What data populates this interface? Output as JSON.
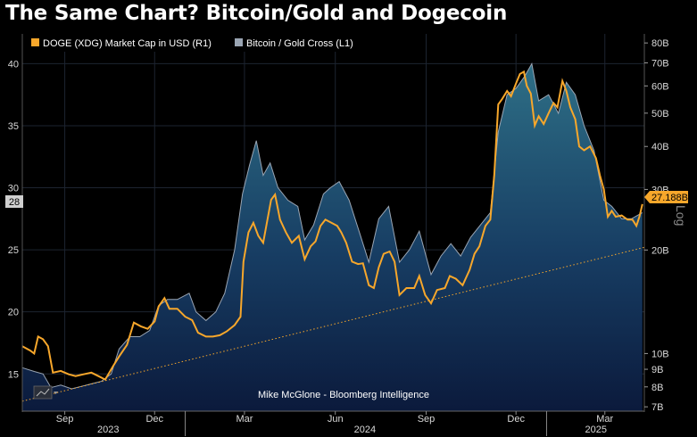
{
  "title": "The Same Chart? Bitcoin/Gold and Dogecoin",
  "credit": "Mike McGlone - Bloomberg Intelligence",
  "colors": {
    "background": "#000000",
    "doge_line": "#f7a72b",
    "btc_gold_line": "#9aa5b3",
    "area_top": "#2e6f86",
    "area_bottom": "#0b1a3c",
    "trendline": "#f7a72b"
  },
  "chart_data": {
    "type": "line",
    "title": "The Same Chart? Bitcoin/Gold and Dogecoin",
    "x_axis": {
      "month_labels": [
        "Sep",
        "Dec",
        "Mar",
        "Jun",
        "Sep",
        "Dec",
        "Mar"
      ],
      "month_dates": [
        "2023-09-01",
        "2023-12-01",
        "2024-03-01",
        "2024-06-01",
        "2024-09-01",
        "2024-12-01",
        "2025-03-01"
      ],
      "year_labels": [
        "2023",
        "2024",
        "2025"
      ],
      "year_dates": [
        "2023-10-15",
        "2024-07-01",
        "2025-02-20"
      ],
      "range": [
        "2023-07-20",
        "2025-04-10"
      ]
    },
    "left_axis": {
      "label": "Bitcoin / Gold Cross (L1)",
      "ticks": [
        15,
        20,
        25,
        30,
        35,
        40
      ],
      "range": [
        12,
        42.4
      ],
      "last_value_tag": "28"
    },
    "right_axis": {
      "label": "Log",
      "scale": "log",
      "ticks": [
        "7B",
        "8B",
        "9B",
        "10B",
        "20B",
        "30B",
        "40B",
        "50B",
        "60B",
        "70B",
        "80B"
      ],
      "tick_values_billion": [
        7,
        8,
        9,
        10,
        20,
        30,
        40,
        50,
        60,
        70,
        80
      ],
      "range_billion": [
        6.8,
        85
      ],
      "last_value_tag": "27.188B"
    },
    "legend": {
      "placement": "top-left",
      "entries": [
        "DOGE (XDG) Market Cap in USD (R1)",
        "Bitcoin / Gold Cross (L1)"
      ]
    },
    "series": [
      {
        "name": "DOGE (XDG) Market Cap in USD (R1)",
        "axis": "right",
        "unit": "USD billions",
        "points": [
          [
            "2023-07-20",
            10.5
          ],
          [
            "2023-07-28",
            10.2
          ],
          [
            "2023-08-01",
            10.0
          ],
          [
            "2023-08-05",
            11.2
          ],
          [
            "2023-08-10",
            11.0
          ],
          [
            "2023-08-15",
            10.5
          ],
          [
            "2023-08-20",
            8.8
          ],
          [
            "2023-08-28",
            8.9
          ],
          [
            "2023-09-05",
            8.7
          ],
          [
            "2023-09-12",
            8.6
          ],
          [
            "2023-09-20",
            8.7
          ],
          [
            "2023-09-28",
            8.8
          ],
          [
            "2023-10-05",
            8.6
          ],
          [
            "2023-10-12",
            8.4
          ],
          [
            "2023-10-20",
            9.2
          ],
          [
            "2023-10-26",
            9.8
          ],
          [
            "2023-11-03",
            10.6
          ],
          [
            "2023-11-10",
            12.3
          ],
          [
            "2023-11-17",
            12.0
          ],
          [
            "2023-11-24",
            11.8
          ],
          [
            "2023-12-01",
            12.4
          ],
          [
            "2023-12-05",
            13.7
          ],
          [
            "2023-12-11",
            14.5
          ],
          [
            "2023-12-16",
            13.5
          ],
          [
            "2023-12-24",
            13.5
          ],
          [
            "2024-01-01",
            12.8
          ],
          [
            "2024-01-08",
            12.5
          ],
          [
            "2024-01-14",
            11.5
          ],
          [
            "2024-01-22",
            11.2
          ],
          [
            "2024-01-29",
            11.2
          ],
          [
            "2024-02-05",
            11.3
          ],
          [
            "2024-02-12",
            11.6
          ],
          [
            "2024-02-20",
            12.1
          ],
          [
            "2024-02-26",
            12.8
          ],
          [
            "2024-02-29",
            18.5
          ],
          [
            "2024-03-05",
            22.5
          ],
          [
            "2024-03-10",
            24.0
          ],
          [
            "2024-03-15",
            22.0
          ],
          [
            "2024-03-20",
            21.0
          ],
          [
            "2024-03-28",
            28.0
          ],
          [
            "2024-04-01",
            29.0
          ],
          [
            "2024-04-06",
            24.5
          ],
          [
            "2024-04-12",
            22.5
          ],
          [
            "2024-04-18",
            21.0
          ],
          [
            "2024-04-25",
            22.0
          ],
          [
            "2024-05-01",
            18.8
          ],
          [
            "2024-05-07",
            20.5
          ],
          [
            "2024-05-12",
            21.2
          ],
          [
            "2024-05-17",
            23.5
          ],
          [
            "2024-05-22",
            24.5
          ],
          [
            "2024-05-28",
            24.0
          ],
          [
            "2024-06-03",
            23.5
          ],
          [
            "2024-06-07",
            22.5
          ],
          [
            "2024-06-12",
            21.0
          ],
          [
            "2024-06-18",
            18.5
          ],
          [
            "2024-06-24",
            18.2
          ],
          [
            "2024-06-29",
            18.3
          ],
          [
            "2024-07-05",
            15.8
          ],
          [
            "2024-07-10",
            15.5
          ],
          [
            "2024-07-15",
            17.8
          ],
          [
            "2024-07-20",
            19.5
          ],
          [
            "2024-07-26",
            19.8
          ],
          [
            "2024-07-31",
            18.5
          ],
          [
            "2024-08-05",
            14.8
          ],
          [
            "2024-08-12",
            15.5
          ],
          [
            "2024-08-20",
            15.5
          ],
          [
            "2024-08-25",
            16.8
          ],
          [
            "2024-08-31",
            14.8
          ],
          [
            "2024-09-06",
            14.0
          ],
          [
            "2024-09-12",
            15.3
          ],
          [
            "2024-09-20",
            15.5
          ],
          [
            "2024-09-25",
            16.8
          ],
          [
            "2024-10-01",
            16.5
          ],
          [
            "2024-10-08",
            15.8
          ],
          [
            "2024-10-15",
            17.5
          ],
          [
            "2024-10-20",
            19.5
          ],
          [
            "2024-10-25",
            20.5
          ],
          [
            "2024-10-31",
            23.5
          ],
          [
            "2024-11-05",
            24.5
          ],
          [
            "2024-11-09",
            33.0
          ],
          [
            "2024-11-13",
            53.0
          ],
          [
            "2024-11-17",
            55.0
          ],
          [
            "2024-11-22",
            58.0
          ],
          [
            "2024-11-26",
            56.0
          ],
          [
            "2024-12-01",
            61.0
          ],
          [
            "2024-12-05",
            65.0
          ],
          [
            "2024-12-09",
            66.0
          ],
          [
            "2024-12-12",
            60.0
          ],
          [
            "2024-12-16",
            57.0
          ],
          [
            "2024-12-20",
            46.0
          ],
          [
            "2024-12-24",
            49.0
          ],
          [
            "2024-12-29",
            46.5
          ],
          [
            "2025-01-03",
            50.0
          ],
          [
            "2025-01-08",
            53.5
          ],
          [
            "2025-01-12",
            52.0
          ],
          [
            "2025-01-17",
            62.0
          ],
          [
            "2025-01-21",
            58.0
          ],
          [
            "2025-01-25",
            52.0
          ],
          [
            "2025-01-30",
            48.0
          ],
          [
            "2025-02-03",
            40.0
          ],
          [
            "2025-02-08",
            39.0
          ],
          [
            "2025-02-14",
            40.0
          ],
          [
            "2025-02-20",
            37.0
          ],
          [
            "2025-02-24",
            33.0
          ],
          [
            "2025-02-28",
            30.0
          ],
          [
            "2025-03-04",
            25.0
          ],
          [
            "2025-03-08",
            26.0
          ],
          [
            "2025-03-12",
            25.0
          ],
          [
            "2025-03-18",
            25.2
          ],
          [
            "2025-03-24",
            24.5
          ],
          [
            "2025-03-29",
            24.5
          ],
          [
            "2025-04-02",
            23.5
          ],
          [
            "2025-04-05",
            25.0
          ],
          [
            "2025-04-08",
            27.188
          ]
        ]
      },
      {
        "name": "Bitcoin / Gold Cross (L1)",
        "axis": "left",
        "unit": "ratio",
        "points": [
          [
            "2023-07-20",
            15.5
          ],
          [
            "2023-08-01",
            15.2
          ],
          [
            "2023-08-10",
            15.0
          ],
          [
            "2023-08-18",
            13.9
          ],
          [
            "2023-08-28",
            14.1
          ],
          [
            "2023-09-08",
            13.8
          ],
          [
            "2023-09-18",
            14.0
          ],
          [
            "2023-09-28",
            14.2
          ],
          [
            "2023-10-08",
            14.4
          ],
          [
            "2023-10-18",
            15.0
          ],
          [
            "2023-10-26",
            17.0
          ],
          [
            "2023-11-06",
            18.0
          ],
          [
            "2023-11-16",
            18.0
          ],
          [
            "2023-11-26",
            18.5
          ],
          [
            "2023-12-05",
            20.5
          ],
          [
            "2023-12-14",
            21.0
          ],
          [
            "2023-12-24",
            21.0
          ],
          [
            "2024-01-05",
            21.5
          ],
          [
            "2024-01-12",
            20.0
          ],
          [
            "2024-01-22",
            19.3
          ],
          [
            "2024-02-01",
            20.0
          ],
          [
            "2024-02-10",
            21.5
          ],
          [
            "2024-02-20",
            25.0
          ],
          [
            "2024-02-28",
            29.5
          ],
          [
            "2024-03-06",
            31.8
          ],
          [
            "2024-03-13",
            33.8
          ],
          [
            "2024-03-20",
            31.0
          ],
          [
            "2024-03-27",
            32.0
          ],
          [
            "2024-04-04",
            30.0
          ],
          [
            "2024-04-14",
            29.0
          ],
          [
            "2024-04-24",
            28.5
          ],
          [
            "2024-05-01",
            25.8
          ],
          [
            "2024-05-10",
            27.0
          ],
          [
            "2024-05-20",
            29.5
          ],
          [
            "2024-05-27",
            30.0
          ],
          [
            "2024-06-05",
            30.5
          ],
          [
            "2024-06-15",
            29.0
          ],
          [
            "2024-06-25",
            26.5
          ],
          [
            "2024-07-05",
            24.0
          ],
          [
            "2024-07-15",
            27.5
          ],
          [
            "2024-07-25",
            28.5
          ],
          [
            "2024-08-05",
            24.0
          ],
          [
            "2024-08-15",
            25.0
          ],
          [
            "2024-08-25",
            26.5
          ],
          [
            "2024-09-06",
            23.0
          ],
          [
            "2024-09-16",
            24.5
          ],
          [
            "2024-09-26",
            25.5
          ],
          [
            "2024-10-06",
            24.5
          ],
          [
            "2024-10-16",
            26.0
          ],
          [
            "2024-10-26",
            27.0
          ],
          [
            "2024-11-05",
            28.0
          ],
          [
            "2024-11-13",
            34.5
          ],
          [
            "2024-11-22",
            37.5
          ],
          [
            "2024-12-01",
            38.0
          ],
          [
            "2024-12-10",
            39.0
          ],
          [
            "2024-12-17",
            40.0
          ],
          [
            "2024-12-24",
            37.0
          ],
          [
            "2025-01-03",
            37.5
          ],
          [
            "2025-01-13",
            36.0
          ],
          [
            "2025-01-21",
            38.5
          ],
          [
            "2025-01-30",
            37.5
          ],
          [
            "2025-02-08",
            35.0
          ],
          [
            "2025-02-18",
            33.0
          ],
          [
            "2025-02-28",
            29.0
          ],
          [
            "2025-03-08",
            28.5
          ],
          [
            "2025-03-18",
            27.5
          ],
          [
            "2025-03-28",
            27.5
          ],
          [
            "2025-04-08",
            28.0
          ]
        ]
      }
    ],
    "trendline": {
      "style": "dotted",
      "from": [
        "2023-07-20",
        12.8
      ],
      "to": [
        "2025-04-10",
        25.2
      ],
      "axis": "left"
    }
  }
}
